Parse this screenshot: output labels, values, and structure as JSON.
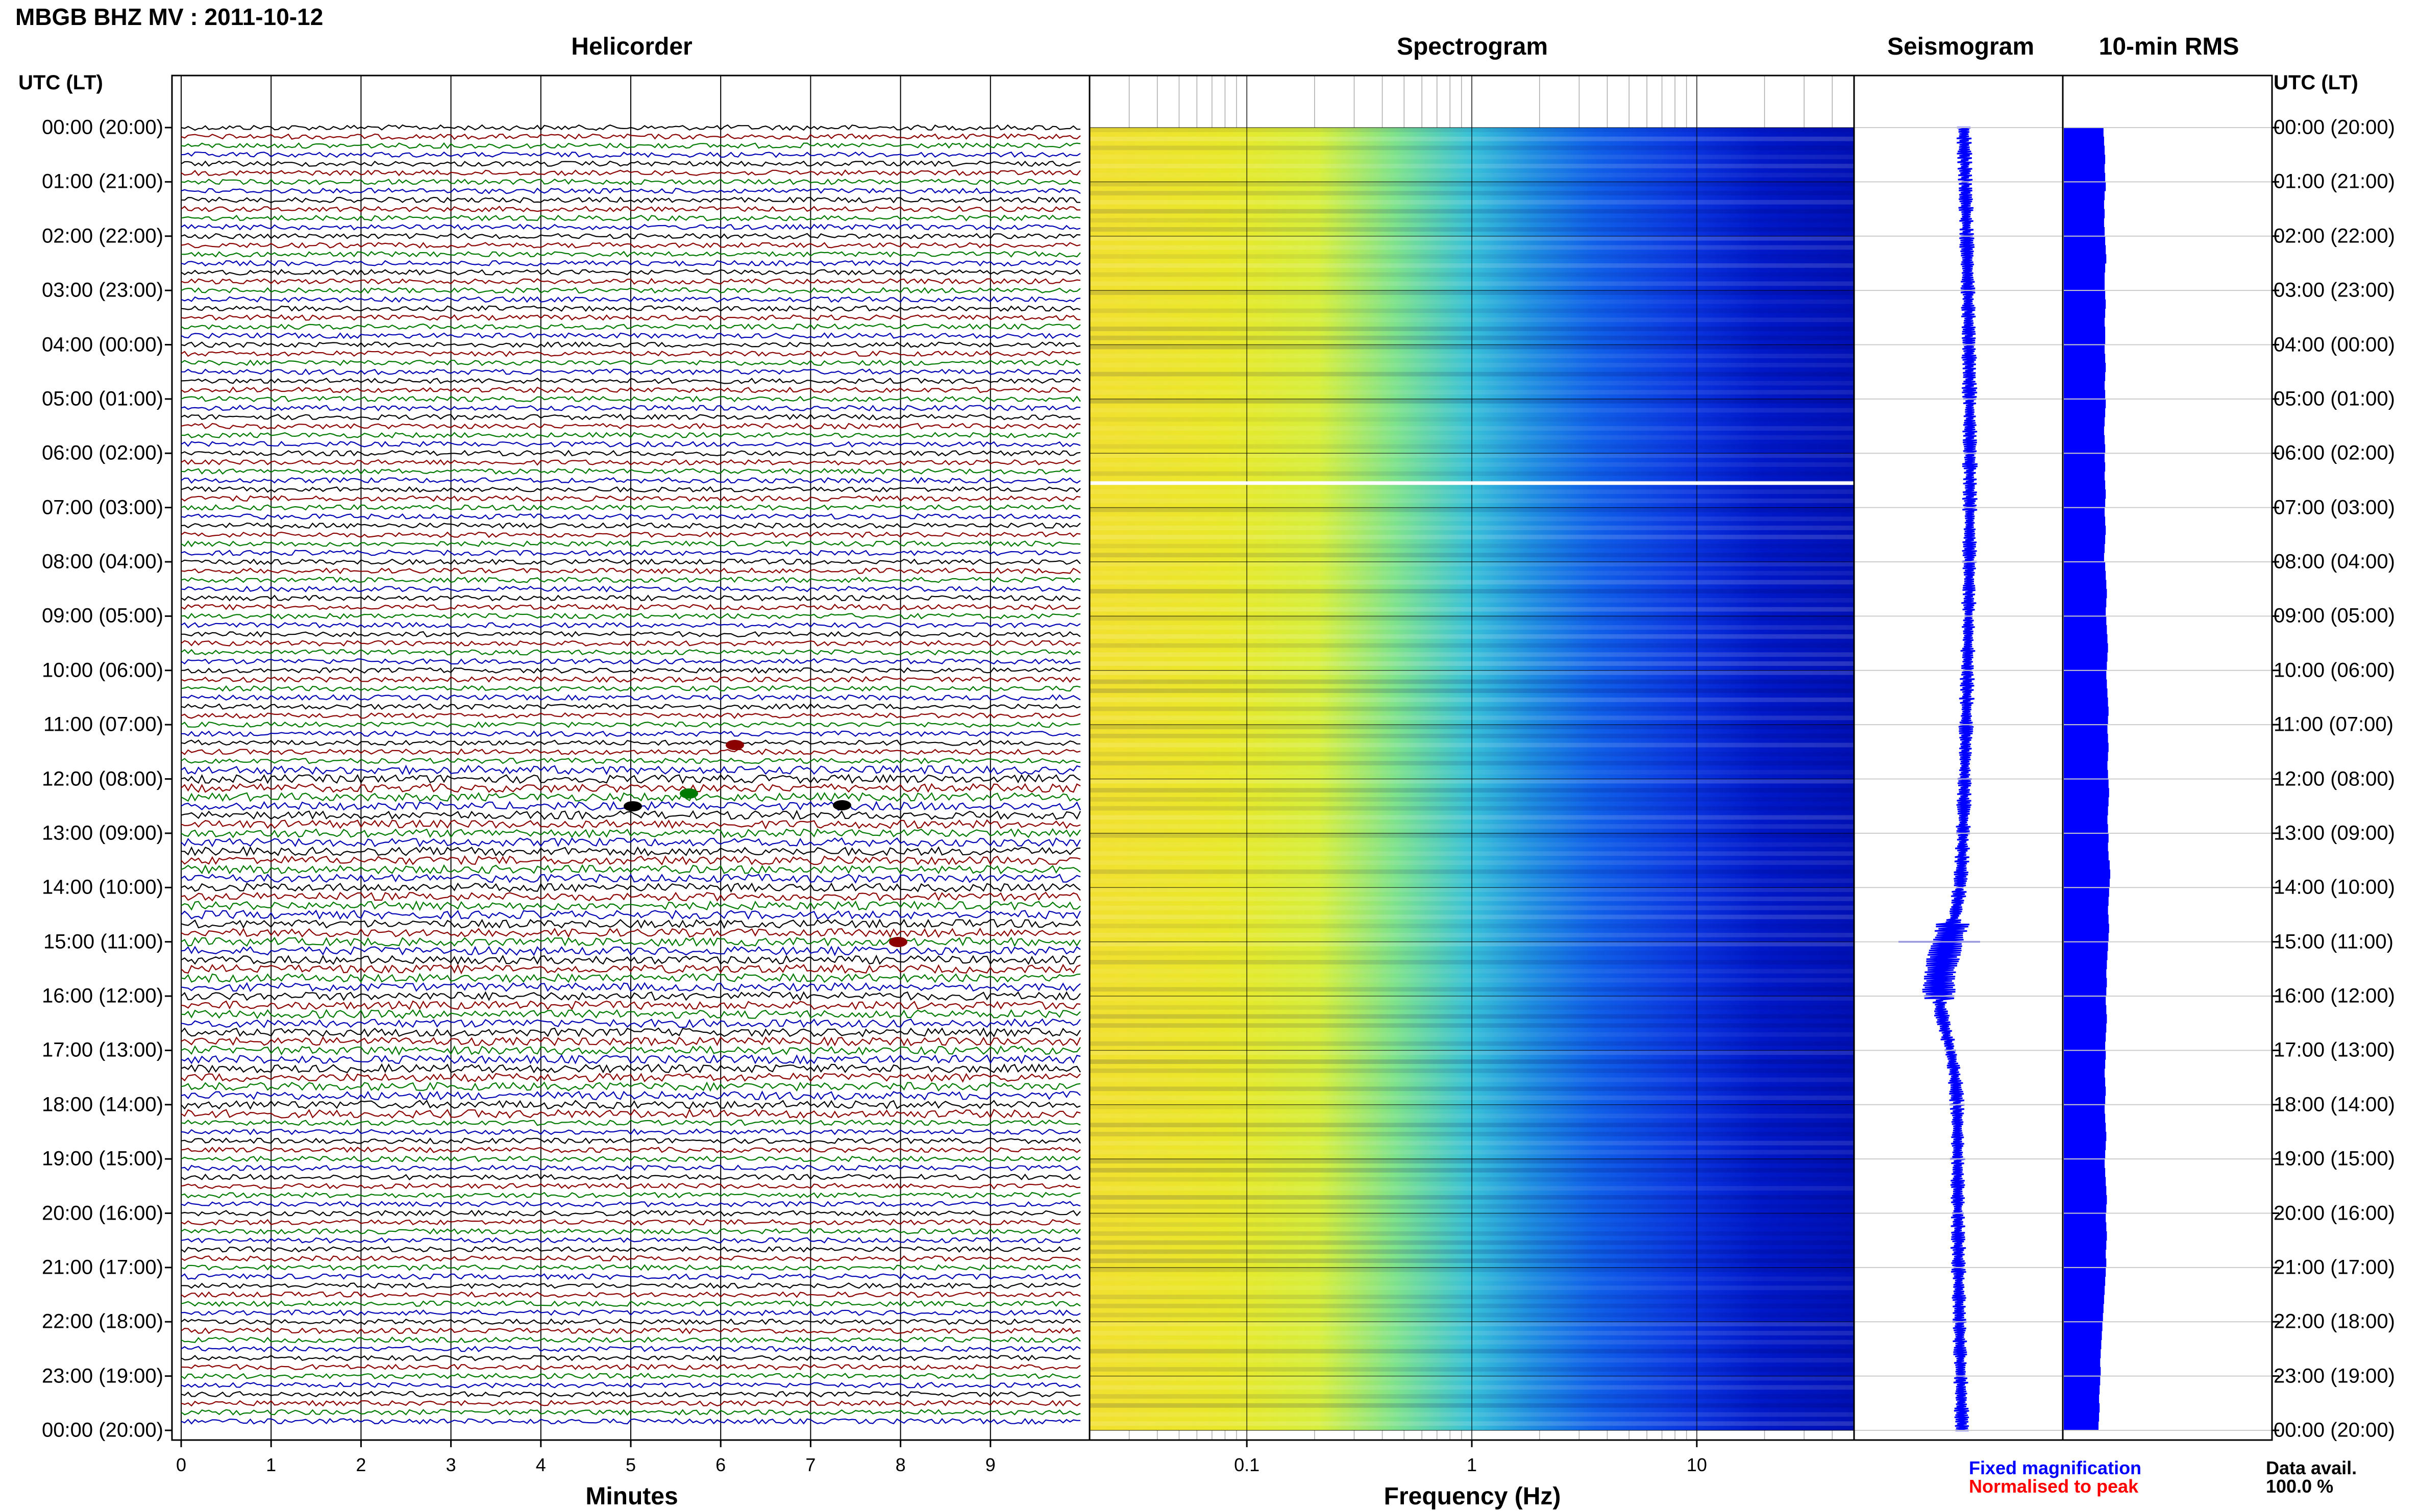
{
  "header": {
    "title": "MBGB BHZ MV : 2011-10-12",
    "utc_label": "UTC (LT)"
  },
  "panels": {
    "helicorder": "Helicorder",
    "spectrogram": "Spectrogram",
    "seismogram": "Seismogram",
    "rms": "10-min RMS"
  },
  "axes": {
    "minutes_label": "Minutes",
    "minute_ticks": [
      "0",
      "1",
      "2",
      "3",
      "4",
      "5",
      "6",
      "7",
      "8",
      "9"
    ],
    "frequency_label": "Frequency (Hz)",
    "frequency_ticks": [
      "0.1",
      "1",
      "10"
    ]
  },
  "time_labels": [
    "00:00 (20:00)",
    "01:00 (21:00)",
    "02:00 (22:00)",
    "03:00 (23:00)",
    "04:00 (00:00)",
    "05:00 (01:00)",
    "06:00 (02:00)",
    "07:00 (03:00)",
    "08:00 (04:00)",
    "09:00 (05:00)",
    "10:00 (06:00)",
    "11:00 (07:00)",
    "12:00 (08:00)",
    "13:00 (09:00)",
    "14:00 (10:00)",
    "15:00 (11:00)",
    "16:00 (12:00)",
    "17:00 (13:00)",
    "18:00 (14:00)",
    "19:00 (15:00)",
    "20:00 (16:00)",
    "21:00 (17:00)",
    "22:00 (18:00)",
    "23:00 (19:00)",
    "00:00 (20:00)"
  ],
  "legend": {
    "fixed": "Fixed magnification",
    "normalised": "Normalised to peak",
    "data_avail_label": "Data avail.",
    "data_avail_value": "100.0 %"
  },
  "colors": {
    "trace_cycle": [
      "#000000",
      "#8b0000",
      "#007a00",
      "#0000b4"
    ],
    "seismogram": "#0000ff",
    "rms": "#0000ff",
    "fixed_legend": "#0000ff",
    "normalised_legend": "#ff0000"
  },
  "chart_data": {
    "type": "heatmap",
    "x_minutes": [
      0,
      10
    ],
    "freq_range_hz": [
      0.02,
      50
    ],
    "freq_scale": "log",
    "hours": 24,
    "rms_10min": [
      0.71,
      0.72,
      0.73,
      0.74,
      0.73,
      0.74,
      0.75,
      0.73,
      0.72,
      0.73,
      0.72,
      0.73,
      0.74,
      0.75,
      0.76,
      0.74,
      0.73,
      0.73,
      0.74,
      0.75,
      0.74,
      0.73,
      0.74,
      0.74,
      0.73,
      0.74,
      0.75,
      0.74,
      0.73,
      0.74,
      0.75,
      0.74,
      0.73,
      0.72,
      0.73,
      0.74,
      0.73,
      0.74,
      0.73,
      0.74,
      0.75,
      0.74,
      0.73,
      0.74,
      0.75,
      0.74,
      0.73,
      0.72,
      0.74,
      0.75,
      0.76,
      0.77,
      0.76,
      0.75,
      0.76,
      0.77,
      0.78,
      0.79,
      0.78,
      0.77,
      0.76,
      0.77,
      0.78,
      0.79,
      0.8,
      0.79,
      0.78,
      0.79,
      0.8,
      0.79,
      0.78,
      0.79,
      0.8,
      0.81,
      0.8,
      0.79,
      0.78,
      0.79,
      0.8,
      0.79,
      0.8,
      0.82,
      0.83,
      0.82,
      0.81,
      0.8,
      0.79,
      0.8,
      0.81,
      0.8,
      0.79,
      0.78,
      0.77,
      0.76,
      0.77,
      0.76,
      0.75,
      0.76,
      0.77,
      0.76,
      0.75,
      0.74,
      0.75,
      0.74,
      0.73,
      0.74,
      0.75,
      0.74,
      0.73,
      0.74,
      0.75,
      0.76,
      0.75,
      0.74,
      0.73,
      0.74,
      0.75,
      0.76,
      0.77,
      0.76,
      0.75,
      0.76,
      0.77,
      0.76,
      0.75,
      0.76,
      0.75,
      0.74,
      0.73,
      0.72,
      0.71,
      0.7,
      0.69,
      0.68,
      0.67,
      0.66,
      0.65,
      0.66,
      0.65,
      0.64,
      0.63,
      0.64,
      0.63,
      0.62
    ]
  }
}
